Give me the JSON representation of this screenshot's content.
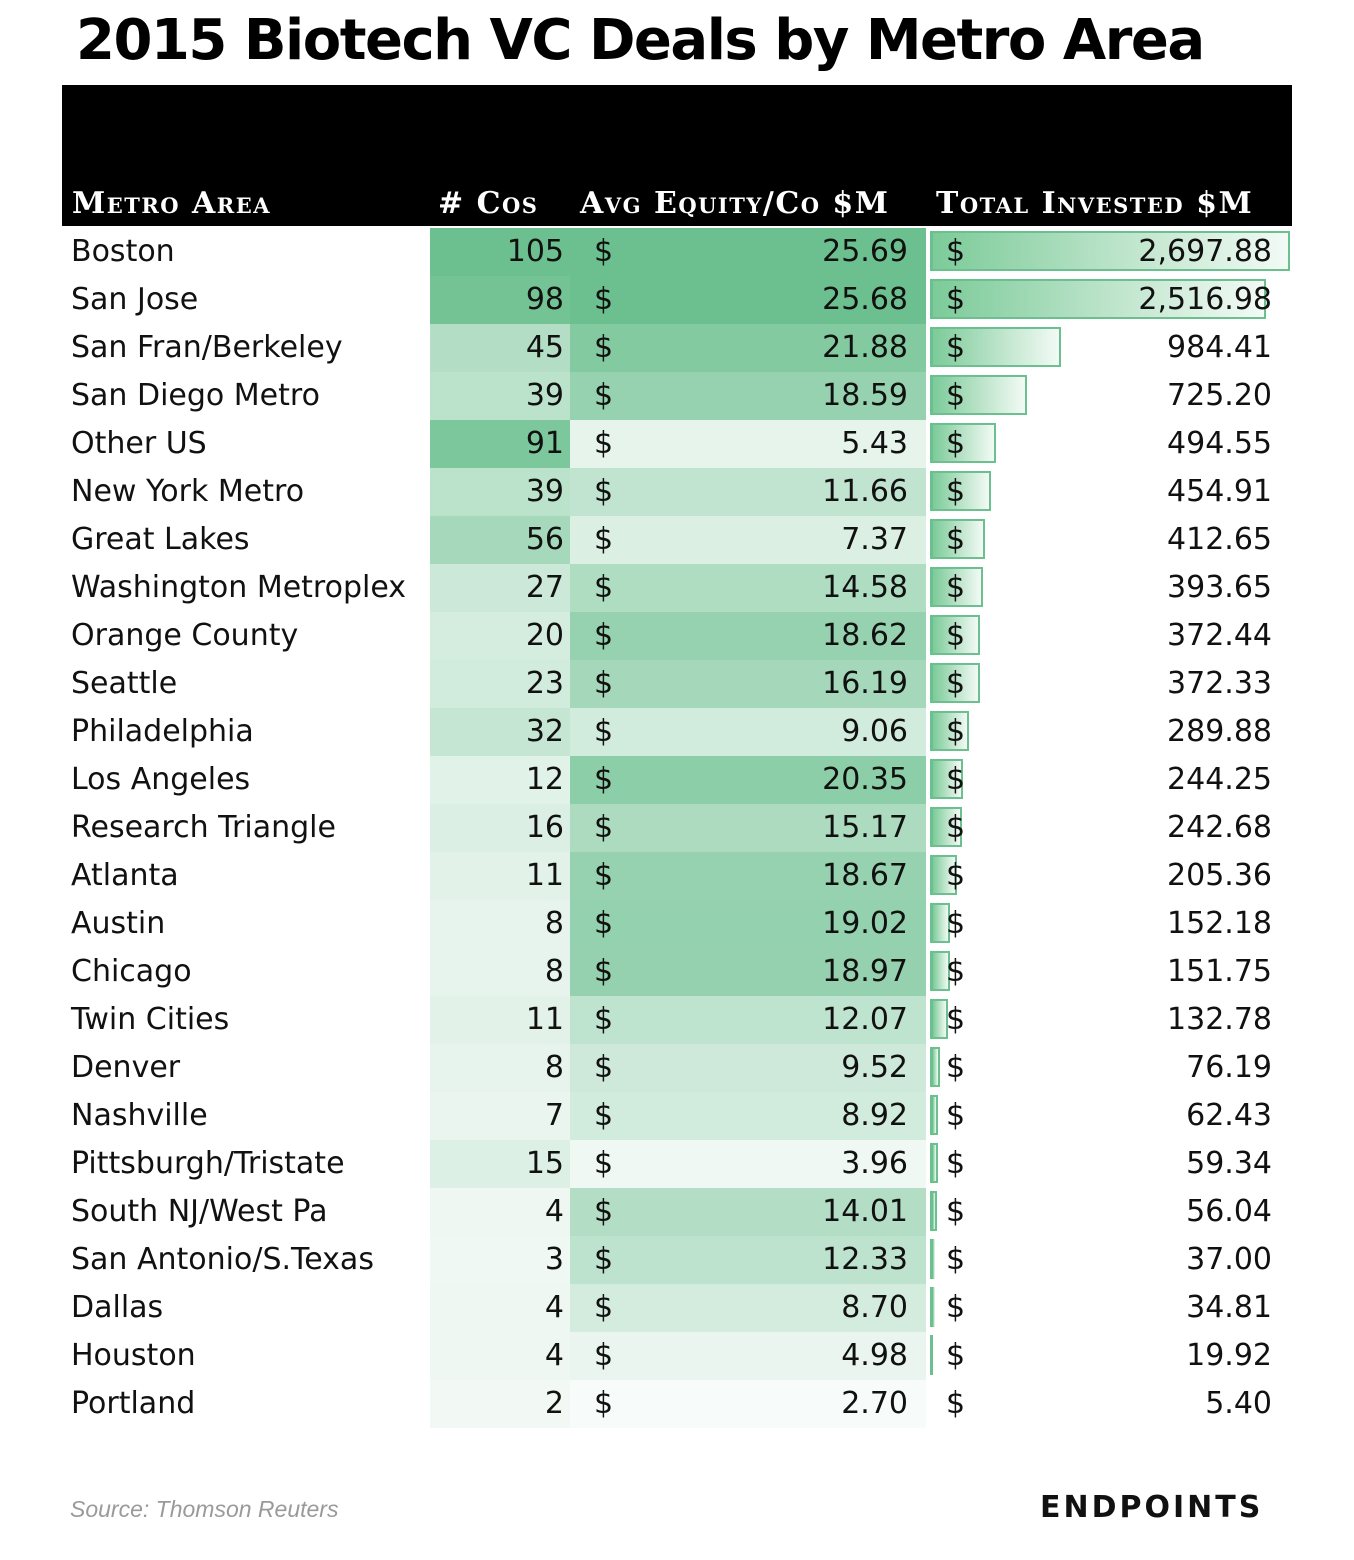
{
  "title": "2015 Biotech VC Deals by Metro Area",
  "headers": {
    "metro": "Metro Area",
    "cos": "# Cos",
    "avg": "Avg Equity/Co $M",
    "total": "Total Invested $M"
  },
  "dollar_sign": "$",
  "source": "Source: Thomson Reuters",
  "logo": "ENDPOINTS",
  "colors": {
    "header_bg": "#000000",
    "heat_high": "#6cc08f",
    "heat_low": "#f7fbf9",
    "bar_border": "#6cc08f"
  },
  "chart_data": {
    "type": "table",
    "title": "2015 Biotech VC Deals by Metro Area",
    "columns": [
      "Metro Area",
      "# Cos",
      "Avg Equity/Co $M",
      "Total Invested $M"
    ],
    "rows": [
      {
        "metro": "Boston",
        "cos": 105,
        "avg": "25.69",
        "total": "2,697.88",
        "total_num": 2697.88
      },
      {
        "metro": "San Jose",
        "cos": 98,
        "avg": "25.68",
        "total": "2,516.98",
        "total_num": 2516.98
      },
      {
        "metro": "San Fran/Berkeley",
        "cos": 45,
        "avg": "21.88",
        "total": "984.41",
        "total_num": 984.41
      },
      {
        "metro": "San Diego Metro",
        "cos": 39,
        "avg": "18.59",
        "total": "725.20",
        "total_num": 725.2
      },
      {
        "metro": "Other US",
        "cos": 91,
        "avg": "5.43",
        "total": "494.55",
        "total_num": 494.55
      },
      {
        "metro": "New York Metro",
        "cos": 39,
        "avg": "11.66",
        "total": "454.91",
        "total_num": 454.91
      },
      {
        "metro": "Great Lakes",
        "cos": 56,
        "avg": "7.37",
        "total": "412.65",
        "total_num": 412.65
      },
      {
        "metro": "Washington Metroplex",
        "cos": 27,
        "avg": "14.58",
        "total": "393.65",
        "total_num": 393.65
      },
      {
        "metro": "Orange County",
        "cos": 20,
        "avg": "18.62",
        "total": "372.44",
        "total_num": 372.44
      },
      {
        "metro": "Seattle",
        "cos": 23,
        "avg": "16.19",
        "total": "372.33",
        "total_num": 372.33
      },
      {
        "metro": "Philadelphia",
        "cos": 32,
        "avg": "9.06",
        "total": "289.88",
        "total_num": 289.88
      },
      {
        "metro": "Los Angeles",
        "cos": 12,
        "avg": "20.35",
        "total": "244.25",
        "total_num": 244.25
      },
      {
        "metro": "Research Triangle",
        "cos": 16,
        "avg": "15.17",
        "total": "242.68",
        "total_num": 242.68
      },
      {
        "metro": "Atlanta",
        "cos": 11,
        "avg": "18.67",
        "total": "205.36",
        "total_num": 205.36
      },
      {
        "metro": "Austin",
        "cos": 8,
        "avg": "19.02",
        "total": "152.18",
        "total_num": 152.18
      },
      {
        "metro": "Chicago",
        "cos": 8,
        "avg": "18.97",
        "total": "151.75",
        "total_num": 151.75
      },
      {
        "metro": "Twin Cities",
        "cos": 11,
        "avg": "12.07",
        "total": "132.78",
        "total_num": 132.78
      },
      {
        "metro": "Denver",
        "cos": 8,
        "avg": "9.52",
        "total": "76.19",
        "total_num": 76.19
      },
      {
        "metro": "Nashville",
        "cos": 7,
        "avg": "8.92",
        "total": "62.43",
        "total_num": 62.43
      },
      {
        "metro": "Pittsburgh/Tristate",
        "cos": 15,
        "avg": "3.96",
        "total": "59.34",
        "total_num": 59.34
      },
      {
        "metro": "South NJ/West Pa",
        "cos": 4,
        "avg": "14.01",
        "total": "56.04",
        "total_num": 56.04
      },
      {
        "metro": "San Antonio/S.Texas",
        "cos": 3,
        "avg": "12.33",
        "total": "37.00",
        "total_num": 37.0
      },
      {
        "metro": "Dallas",
        "cos": 4,
        "avg": "8.70",
        "total": "34.81",
        "total_num": 34.81
      },
      {
        "metro": "Houston",
        "cos": 4,
        "avg": "4.98",
        "total": "19.92",
        "total_num": 19.92
      },
      {
        "metro": "Portland",
        "cos": 2,
        "avg": "2.70",
        "total": "5.40",
        "total_num": 5.4
      }
    ]
  }
}
